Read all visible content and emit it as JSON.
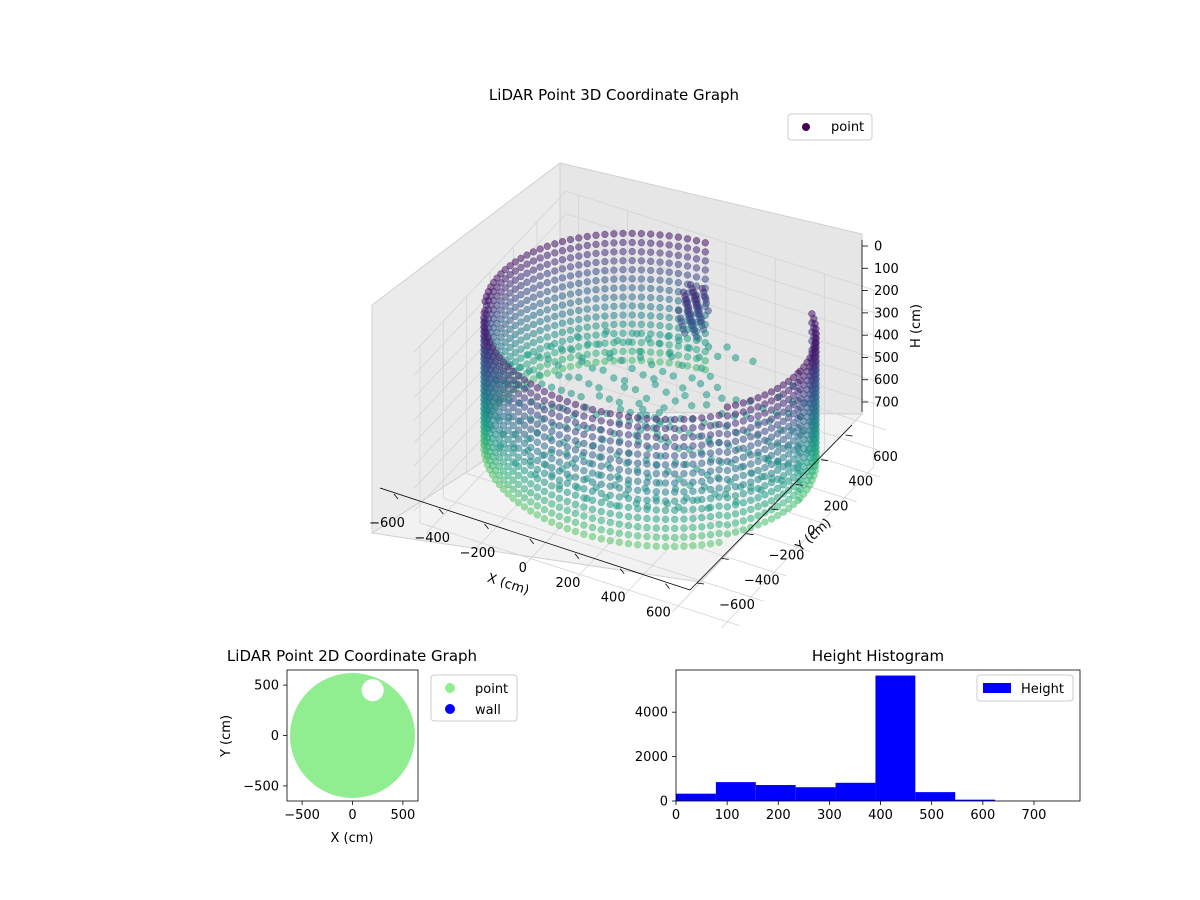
{
  "chart_data": [
    {
      "type": "scatter",
      "title": "LiDAR Point 3D Coordinate Graph",
      "xlabel": "X (cm)",
      "ylabel": "Y (cm)",
      "zlabel": "H (cm)",
      "xlim": [
        -650,
        650
      ],
      "ylim": [
        -650,
        650
      ],
      "zlim": [
        780,
        0
      ],
      "x_ticks": [
        "−600",
        "−400",
        "−200",
        "0",
        "200",
        "400",
        "600"
      ],
      "y_ticks": [
        "−600",
        "−400",
        "−200",
        "0",
        "200",
        "400",
        "600"
      ],
      "z_ticks": [
        "0",
        "100",
        "200",
        "300",
        "400",
        "500",
        "600",
        "700"
      ],
      "z_tick_values": [
        0,
        100,
        200,
        300,
        400,
        500,
        600,
        700
      ],
      "legend": [
        "point"
      ],
      "legend_position": "upper-right",
      "colormap": "viridis",
      "series": [
        {
          "name": "point",
          "description_values": {
            "ring_radius": 610,
            "wall_height_range": [
              0,
              560
            ],
            "floor_height": 430
          }
        }
      ],
      "grid": true
    },
    {
      "type": "scatter",
      "title": "LiDAR Point 2D Coordinate Graph",
      "xlabel": "X (cm)",
      "ylabel": "Y (cm)",
      "xlim": [
        -650,
        650
      ],
      "ylim": [
        -650,
        650
      ],
      "x_ticks": [
        "−500",
        "0",
        "500"
      ],
      "x_tick_values": [
        -500,
        0,
        500
      ],
      "y_ticks": [
        "−500",
        "0",
        "500"
      ],
      "y_tick_values": [
        -500,
        0,
        500
      ],
      "legend": [
        {
          "label": "point",
          "color": "#90ee90"
        },
        {
          "label": "wall",
          "color": "#0000ff"
        }
      ],
      "legend_position": "outside-right",
      "disc_radius": 620,
      "gap_center": [
        200,
        450
      ],
      "gap_radius": 110
    },
    {
      "type": "bar",
      "title": "Height Histogram",
      "xlabel": "",
      "ylabel": "",
      "bin_edges": [
        0,
        78,
        156,
        234,
        312,
        390,
        468,
        546,
        624,
        702,
        780
      ],
      "values": [
        330,
        850,
        720,
        620,
        820,
        5650,
        400,
        60,
        5,
        5
      ],
      "xlim": [
        0,
        790
      ],
      "ylim": [
        0,
        5900
      ],
      "x_ticks": [
        "0",
        "100",
        "200",
        "300",
        "400",
        "500",
        "600",
        "700"
      ],
      "x_tick_values": [
        0,
        100,
        200,
        300,
        400,
        500,
        600,
        700
      ],
      "y_ticks": [
        "0",
        "2000",
        "4000"
      ],
      "y_tick_values": [
        0,
        2000,
        4000
      ],
      "legend": [
        "Height"
      ],
      "legend_position": "upper-right",
      "color": "#0000ff"
    }
  ]
}
